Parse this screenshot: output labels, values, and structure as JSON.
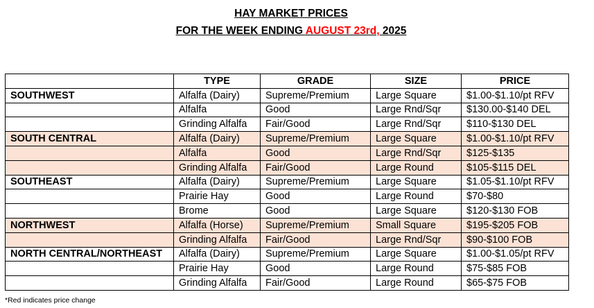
{
  "title": {
    "line1": "HAY MARKET PRICES",
    "line2_prefix": "FOR THE WEEK ENDING ",
    "line2_date": "AUGUST 23rd,",
    "line2_year": " 2025"
  },
  "colors": {
    "shade": "#fbe2d5",
    "change": "#ff0000"
  },
  "table": {
    "headers": [
      "",
      "TYPE",
      "GRADE",
      "SIZE",
      "PRICE"
    ],
    "rows": [
      {
        "region": "SOUTHWEST",
        "type": "Alfalfa (Dairy)",
        "grade": "Supreme/Premium",
        "size": "Large Square",
        "price": "$1.00-$1.10/pt RFV",
        "shaded": false
      },
      {
        "region": "",
        "type": "Alfalfa",
        "grade": "Good",
        "size": "Large Rnd/Sqr",
        "price": "$130.00-$140 DEL",
        "shaded": false
      },
      {
        "region": "",
        "type": "Grinding Alfalfa",
        "grade": "Fair/Good",
        "size": "Large Rnd/Sqr",
        "price": "$110-$130 DEL",
        "shaded": false
      },
      {
        "region": "SOUTH CENTRAL",
        "type": "Alfalfa (Dairy)",
        "grade": "Supreme/Premium",
        "size": "Large Square",
        "price": "$1.00-$1.10/pt RFV",
        "shaded": true
      },
      {
        "region": "",
        "type": "Alfalfa",
        "grade": "Good",
        "size": "Large Rnd/Sqr",
        "price": "$125-$135",
        "shaded": true
      },
      {
        "region": "",
        "type": "Grinding Alfalfa",
        "grade": "Fair/Good",
        "size": "Large Round",
        "price": "$105-$115 DEL",
        "shaded": true
      },
      {
        "region": "SOUTHEAST",
        "type": "Alfalfa (Dairy)",
        "grade": "Supreme/Premium",
        "size": "Large Square",
        "price": "$1.05-$1.10/pt RFV",
        "shaded": false
      },
      {
        "region": "",
        "type": "Prairie Hay",
        "grade": "Good",
        "size": "Large Round",
        "price": "$70-$80",
        "shaded": false
      },
      {
        "region": "",
        "type": "Brome",
        "grade": "Good",
        "size": "Large Square",
        "price": "$120-$130 FOB",
        "shaded": false
      },
      {
        "region": "NORTHWEST",
        "type": "Alfalfa (Horse)",
        "grade": "Supreme/Premium",
        "size": "Small Square",
        "price": "$195-$205 FOB",
        "shaded": true
      },
      {
        "region": "",
        "type": "Grinding Alfalfa",
        "grade": "Fair/Good",
        "size": "Large Rnd/Sqr",
        "price": "$90-$100 FOB",
        "shaded": true
      },
      {
        "region": "NORTH CENTRAL/NORTHEAST",
        "type": "Alfalfa (Dairy)",
        "grade": "Supreme/Premium",
        "size": "Large Square",
        "price": "$1.00-$1.05/pt RFV",
        "shaded": false
      },
      {
        "region": "",
        "type": "Prairie Hay",
        "grade": "Good",
        "size": "Large Round",
        "price": "$75-$85 FOB",
        "shaded": false
      },
      {
        "region": "",
        "type": "Grinding Alfalfa",
        "grade": "Fair/Good",
        "size": "Large Round",
        "price": "$65-$75 FOB",
        "shaded": false
      }
    ]
  },
  "footnote": "*Red indicates price change"
}
